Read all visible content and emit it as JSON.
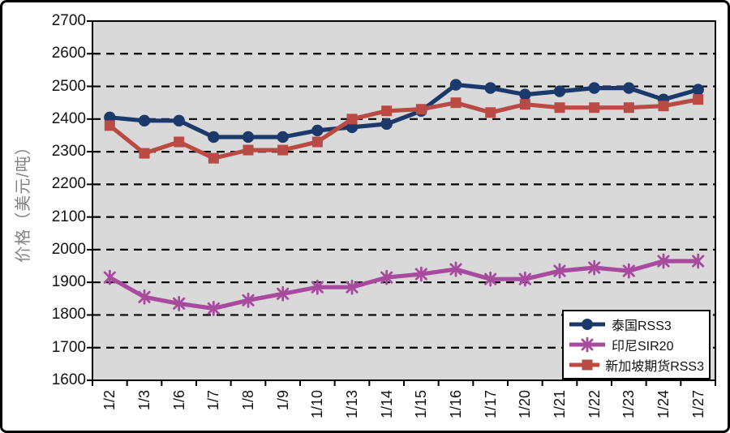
{
  "chart": {
    "page_bg": "#FFFFFF",
    "plot_bg": "#D9D9D9",
    "axis_color": "#000000",
    "gridline_color": "#000000",
    "tick_label_color": "#111111",
    "y_title_color": "#828282"
  },
  "chart_data": {
    "type": "line",
    "title": "",
    "xlabel": "",
    "ylabel": "价格（美元/吨）",
    "ylim": [
      1600,
      2700
    ],
    "ytick_step": 100,
    "grid": "horizontal-dashed",
    "legend_position": "inside-bottom-right",
    "categories": [
      "1/2",
      "1/3",
      "1/6",
      "1/7",
      "1/8",
      "1/9",
      "1/10",
      "1/13",
      "1/14",
      "1/15",
      "1/16",
      "1/17",
      "1/20",
      "1/21",
      "1/22",
      "1/23",
      "1/24",
      "1/27"
    ],
    "series": [
      {
        "name": "泰国RSS3",
        "color": "#1B3A6B",
        "marker": "circle",
        "values": [
          2405,
          2395,
          2395,
          2345,
          2345,
          2345,
          2365,
          2375,
          2385,
          2425,
          2505,
          2495,
          2475,
          2485,
          2495,
          2495,
          2460,
          2490
        ]
      },
      {
        "name": "印尼SIR20",
        "color": "#A84B9E",
        "marker": "asterisk",
        "values": [
          1915,
          1855,
          1835,
          1820,
          1845,
          1865,
          1885,
          1885,
          1915,
          1925,
          1940,
          1910,
          1910,
          1935,
          1945,
          1935,
          1965,
          1965
        ]
      },
      {
        "name": "新加坡期货RSS3",
        "color": "#BA4A44",
        "marker": "square",
        "values": [
          2380,
          2295,
          2330,
          2280,
          2305,
          2305,
          2330,
          2400,
          2425,
          2430,
          2450,
          2420,
          2445,
          2435,
          2435,
          2435,
          2440,
          2460
        ]
      }
    ]
  }
}
